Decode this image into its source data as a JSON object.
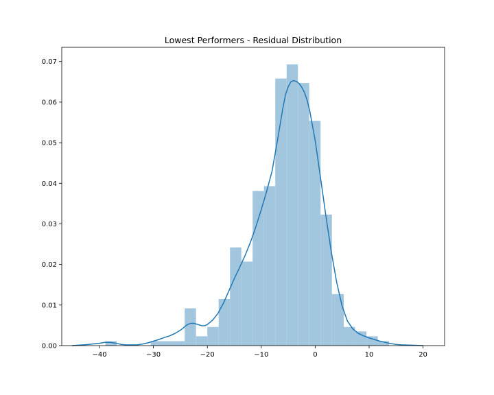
{
  "chart_data": {
    "type": "histogram",
    "title": "Lowest Performers - Residual Distribution",
    "xlabel": "",
    "ylabel": "",
    "xlim": [
      -47,
      24
    ],
    "ylim": [
      0,
      0.0735
    ],
    "x_ticks": [
      {
        "value": -40,
        "label": "−40"
      },
      {
        "value": -30,
        "label": "−30"
      },
      {
        "value": -20,
        "label": "−20"
      },
      {
        "value": -10,
        "label": "−10"
      },
      {
        "value": 0,
        "label": "0"
      },
      {
        "value": 10,
        "label": "10"
      },
      {
        "value": 20,
        "label": "20"
      }
    ],
    "y_ticks": [
      {
        "value": 0.0,
        "label": "0.00"
      },
      {
        "value": 0.01,
        "label": "0.01"
      },
      {
        "value": 0.02,
        "label": "0.02"
      },
      {
        "value": 0.03,
        "label": "0.03"
      },
      {
        "value": 0.04,
        "label": "0.04"
      },
      {
        "value": 0.05,
        "label": "0.05"
      },
      {
        "value": 0.06,
        "label": "0.06"
      },
      {
        "value": 0.07,
        "label": "0.07"
      }
    ],
    "grid": false,
    "bar_color": "#a3c6df",
    "line_color": "#1f77b4",
    "bins": [
      {
        "x0": -38.9,
        "x1": -36.8,
        "density": 0.0011
      },
      {
        "x0": -30.5,
        "x1": -28.3,
        "density": 0.0011
      },
      {
        "x0": -28.3,
        "x1": -24.2,
        "density": 0.0011
      },
      {
        "x0": -24.2,
        "x1": -22.1,
        "density": 0.0092
      },
      {
        "x0": -22.1,
        "x1": -20.0,
        "density": 0.0023
      },
      {
        "x0": -20.0,
        "x1": -17.9,
        "density": 0.0046
      },
      {
        "x0": -17.9,
        "x1": -15.8,
        "density": 0.0115
      },
      {
        "x0": -15.8,
        "x1": -13.7,
        "density": 0.0242
      },
      {
        "x0": -13.7,
        "x1": -11.6,
        "density": 0.0207
      },
      {
        "x0": -11.6,
        "x1": -9.5,
        "density": 0.0381
      },
      {
        "x0": -9.5,
        "x1": -7.4,
        "density": 0.0393
      },
      {
        "x0": -7.4,
        "x1": -5.3,
        "density": 0.0658
      },
      {
        "x0": -5.3,
        "x1": -3.2,
        "density": 0.0693
      },
      {
        "x0": -3.2,
        "x1": -1.1,
        "density": 0.0647
      },
      {
        "x0": -1.1,
        "x1": 1.0,
        "density": 0.0554
      },
      {
        "x0": 1.0,
        "x1": 3.1,
        "density": 0.0323
      },
      {
        "x0": 3.1,
        "x1": 5.3,
        "density": 0.0127
      },
      {
        "x0": 5.3,
        "x1": 7.4,
        "density": 0.0046
      },
      {
        "x0": 7.4,
        "x1": 9.5,
        "density": 0.0035
      },
      {
        "x0": 9.5,
        "x1": 11.6,
        "density": 0.0023
      },
      {
        "x0": 11.6,
        "x1": 13.7,
        "density": 0.0011
      }
    ],
    "kde": {
      "x": [
        -45.1,
        -44,
        -42,
        -40,
        -39,
        -38,
        -37,
        -36,
        -35,
        -33,
        -32,
        -31,
        -30,
        -29,
        -28,
        -27,
        -26,
        -25,
        -24.5,
        -24,
        -23.5,
        -23,
        -22.5,
        -22,
        -21.5,
        -21,
        -20.5,
        -20,
        -19,
        -18,
        -17,
        -16,
        -15,
        -14,
        -13,
        -12,
        -11,
        -10,
        -9,
        -8,
        -7,
        -6,
        -5.5,
        -5,
        -4.5,
        -4,
        -3.5,
        -3,
        -2.5,
        -2,
        -1.5,
        -1,
        0,
        1,
        2,
        3,
        4,
        5,
        6,
        7,
        8,
        9,
        10,
        11,
        12,
        13,
        14,
        15,
        16,
        18,
        20
      ],
      "y": [
        0.0,
        0.0001,
        0.0003,
        0.0006,
        0.0008,
        0.0008,
        0.0006,
        0.0003,
        0.0002,
        0.0002,
        0.0004,
        0.0007,
        0.0011,
        0.0015,
        0.002,
        0.0024,
        0.003,
        0.0038,
        0.0043,
        0.0049,
        0.0053,
        0.0055,
        0.0055,
        0.0053,
        0.0051,
        0.0049,
        0.0049,
        0.0052,
        0.0063,
        0.008,
        0.0105,
        0.0135,
        0.0165,
        0.0193,
        0.0222,
        0.0255,
        0.0293,
        0.0335,
        0.038,
        0.043,
        0.0505,
        0.0585,
        0.0618,
        0.0638,
        0.065,
        0.0653,
        0.0651,
        0.0646,
        0.0637,
        0.0624,
        0.0605,
        0.0578,
        0.0505,
        0.0413,
        0.0318,
        0.023,
        0.0155,
        0.0097,
        0.006,
        0.0041,
        0.003,
        0.0024,
        0.0019,
        0.0015,
        0.0011,
        0.0008,
        0.0005,
        0.0003,
        0.0002,
        0.0001,
        0.0
      ]
    }
  }
}
